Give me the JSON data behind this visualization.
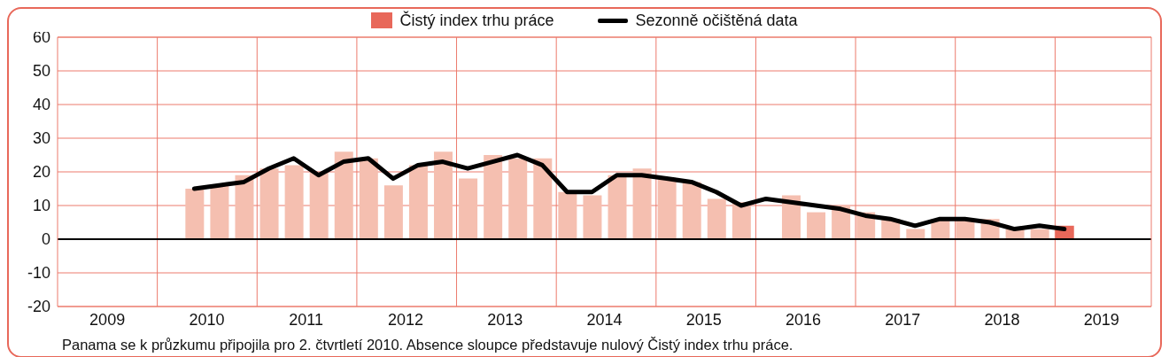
{
  "chart_data": {
    "type": "bar",
    "annotations": [
      "Panama se k průzkumu připojila pro 2. čtvrtletí 2010. Absence sloupce představuje nulový Čistý index trhu práce."
    ],
    "x": [
      2010.375,
      2010.625,
      2010.875,
      2011.125,
      2011.375,
      2011.625,
      2011.875,
      2012.125,
      2012.375,
      2012.625,
      2012.875,
      2013.125,
      2013.375,
      2013.625,
      2013.875,
      2014.125,
      2014.375,
      2014.625,
      2014.875,
      2015.125,
      2015.375,
      2015.625,
      2015.875,
      2016.125,
      2016.375,
      2016.625,
      2016.875,
      2017.125,
      2017.375,
      2017.625,
      2017.875,
      2018.125,
      2018.375,
      2018.625,
      2018.875,
      2019.125
    ],
    "series": [
      {
        "name": "Čistý index trhu práce",
        "color": "#f5bfb0",
        "colors": [
          "#f5bfb0",
          "#f5bfb0",
          "#f5bfb0",
          "#f5bfb0",
          "#f5bfb0",
          "#f5bfb0",
          "#f5bfb0",
          "#f5bfb0",
          "#f5bfb0",
          "#f5bfb0",
          "#f5bfb0",
          "#f5bfb0",
          "#f5bfb0",
          "#f5bfb0",
          "#f5bfb0",
          "#f5bfb0",
          "#f5bfb0",
          "#f5bfb0",
          "#f5bfb0",
          "#f5bfb0",
          "#f5bfb0",
          "#f5bfb0",
          "#f5bfb0",
          "#f5bfb0",
          "#f5bfb0",
          "#f5bfb0",
          "#f5bfb0",
          "#f5bfb0",
          "#f5bfb0",
          "#f5bfb0",
          "#f5bfb0",
          "#f5bfb0",
          "#f5bfb0",
          "#f5bfb0",
          "#f5bfb0",
          "#e8685a"
        ],
        "values": [
          15,
          16,
          19,
          21,
          22,
          20,
          26,
          24,
          16,
          22,
          26,
          18,
          25,
          24,
          24,
          14,
          13,
          19,
          21,
          18,
          17,
          12,
          11,
          null,
          13,
          8,
          10,
          8,
          6,
          3,
          6,
          6,
          6,
          3,
          3,
          4
        ]
      },
      {
        "name": "Sezonně očištěná data",
        "type": "line",
        "color": "#000000",
        "values": [
          15,
          16,
          17,
          21,
          24,
          19,
          23,
          24,
          18,
          22,
          23,
          21,
          23,
          25,
          22,
          14,
          14,
          19,
          19,
          18,
          17,
          14,
          10,
          12,
          11,
          10,
          9,
          7,
          6,
          4,
          6,
          6,
          5,
          3,
          4,
          3
        ]
      }
    ],
    "xlim": [
      2009,
      2020
    ],
    "xticks": [
      {
        "value": 2009.5,
        "label": "2009"
      },
      {
        "value": 2010,
        "label": null
      },
      {
        "value": 2010.5,
        "label": "2010"
      },
      {
        "value": 2011,
        "label": null
      },
      {
        "value": 2011.5,
        "label": "2011"
      },
      {
        "value": 2012,
        "label": null
      },
      {
        "value": 2012.5,
        "label": "2012"
      },
      {
        "value": 2013,
        "label": null
      },
      {
        "value": 2013.5,
        "label": "2013"
      },
      {
        "value": 2014,
        "label": null
      },
      {
        "value": 2014.5,
        "label": "2014"
      },
      {
        "value": 2015,
        "label": null
      },
      {
        "value": 2015.5,
        "label": "2015"
      },
      {
        "value": 2016,
        "label": null
      },
      {
        "value": 2016.5,
        "label": "2016"
      },
      {
        "value": 2017,
        "label": null
      },
      {
        "value": 2017.5,
        "label": "2017"
      },
      {
        "value": 2018,
        "label": null
      },
      {
        "value": 2018.5,
        "label": "2018"
      },
      {
        "value": 2019,
        "label": null
      },
      {
        "value": 2019.5,
        "label": "2019"
      }
    ],
    "ylim": [
      -20,
      60
    ],
    "yticks": [
      -20,
      -10,
      0,
      10,
      20,
      30,
      40,
      50,
      60
    ],
    "ref_lines": [
      {
        "axis": "y",
        "value": 0,
        "color": "#000000"
      }
    ],
    "grid": true,
    "legend": "top",
    "marker": "none",
    "line_style": "solid"
  }
}
